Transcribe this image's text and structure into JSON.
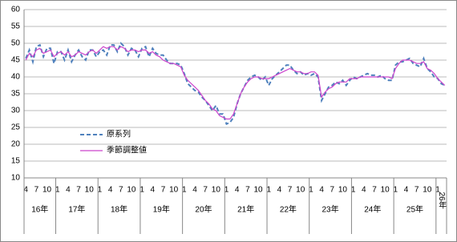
{
  "chart_data": {
    "type": "line",
    "categories": [
      "4",
      null,
      null,
      "7",
      null,
      null,
      "10",
      null,
      null,
      "1",
      null,
      null,
      "4",
      null,
      null,
      "7",
      null,
      null,
      "10",
      null,
      null,
      "1",
      null,
      null,
      "4",
      null,
      null,
      "7",
      null,
      null,
      "10",
      null,
      null,
      "1",
      null,
      null,
      "4",
      null,
      null,
      "7",
      null,
      null,
      "10",
      null,
      null,
      "1",
      null,
      null,
      "4",
      null,
      null,
      "7",
      null,
      null,
      "10",
      null,
      null,
      "1",
      null,
      null,
      "4",
      null,
      null,
      "7",
      null,
      null,
      "10",
      null,
      null,
      "1",
      null,
      null,
      "4",
      null,
      null,
      "7",
      null,
      null,
      "10",
      null,
      null,
      "1",
      null,
      null,
      "4",
      null,
      null,
      "7",
      null,
      null,
      "10",
      null,
      null,
      "1",
      null,
      null,
      "4",
      null,
      null,
      "7",
      null,
      null,
      "10",
      null,
      null,
      "1",
      null,
      null,
      "4",
      null,
      null,
      "7",
      null,
      null,
      "10",
      null,
      null,
      "1",
      null,
      null
    ],
    "years": [
      "16年",
      "17年",
      "18年",
      "19年",
      "20年",
      "21年",
      "22年",
      "23年",
      "24年",
      "25年",
      "26年"
    ],
    "series": [
      {
        "name": "原系列",
        "color": "#4f81bd",
        "dashed": true,
        "values": [
          45.5,
          48,
          44.5,
          49,
          49.5,
          46,
          48.5,
          48.5,
          44,
          47.5,
          47.5,
          45,
          48,
          44.5,
          46.5,
          48,
          46,
          45,
          48,
          48,
          46,
          47.5,
          48,
          46.5,
          49.5,
          49.5,
          47.5,
          50,
          49,
          46.5,
          48.5,
          48,
          46,
          48.5,
          49,
          46,
          48.5,
          47,
          46.5,
          46.5,
          45,
          44,
          44,
          44,
          43.5,
          41,
          38,
          37,
          36,
          35.5,
          34,
          33,
          31.5,
          30,
          31.5,
          29,
          29,
          26,
          26.5,
          28,
          32,
          35,
          37,
          39,
          40,
          40.5,
          40,
          39,
          40,
          37.5,
          39.5,
          40.5,
          41.5,
          42.5,
          43.5,
          43.5,
          42,
          41,
          41.5,
          40.5,
          41,
          40.5,
          41,
          40,
          33,
          35,
          37,
          37.5,
          38.5,
          38,
          39,
          37.5,
          39,
          40,
          39.5,
          40,
          40.5,
          41,
          40.5,
          40.5,
          40,
          40.5,
          39.5,
          39,
          39,
          43.5,
          44.5,
          44.5,
          45,
          45.5,
          44,
          43.5,
          43,
          45.5,
          42.5,
          41.5,
          40,
          39.5,
          38,
          37.5
        ]
      },
      {
        "name": "季節調整値",
        "color": "#cc44cc",
        "dashed": false,
        "values": [
          45,
          47,
          46,
          48,
          48.5,
          47,
          47.5,
          48,
          46,
          47,
          47.5,
          46.5,
          47.5,
          46,
          46.5,
          47.5,
          47,
          46.5,
          47.5,
          48,
          47,
          48,
          49,
          48.5,
          49,
          49,
          48,
          49,
          48.5,
          47.5,
          48,
          48,
          47.5,
          48,
          48,
          47,
          47.5,
          46.5,
          46,
          45,
          44.5,
          44,
          44,
          43.5,
          43,
          40.5,
          39,
          38,
          37,
          36,
          34.5,
          33,
          32,
          30.5,
          30,
          28.5,
          28,
          27.5,
          27.5,
          29,
          32,
          35,
          37,
          38.5,
          39.5,
          40,
          40,
          39.5,
          39.5,
          39.5,
          40,
          40.5,
          41,
          41.5,
          42,
          42.5,
          42,
          41.5,
          41.5,
          41,
          41,
          41.5,
          41.5,
          40.5,
          34,
          35.5,
          36.5,
          37,
          38,
          38.5,
          38.5,
          38.5,
          39.5,
          39.5,
          39.5,
          40,
          40,
          40,
          40,
          40,
          40,
          40,
          40,
          40,
          39.5,
          42.5,
          44,
          45,
          45,
          45,
          44.5,
          44,
          44,
          44.5,
          42.5,
          42,
          41,
          39.5,
          38.5,
          37.5
        ]
      }
    ],
    "ylim": [
      10,
      60
    ],
    "yticks": [
      10,
      15,
      20,
      25,
      30,
      35,
      40,
      45,
      50,
      55,
      60
    ],
    "grid": true
  }
}
